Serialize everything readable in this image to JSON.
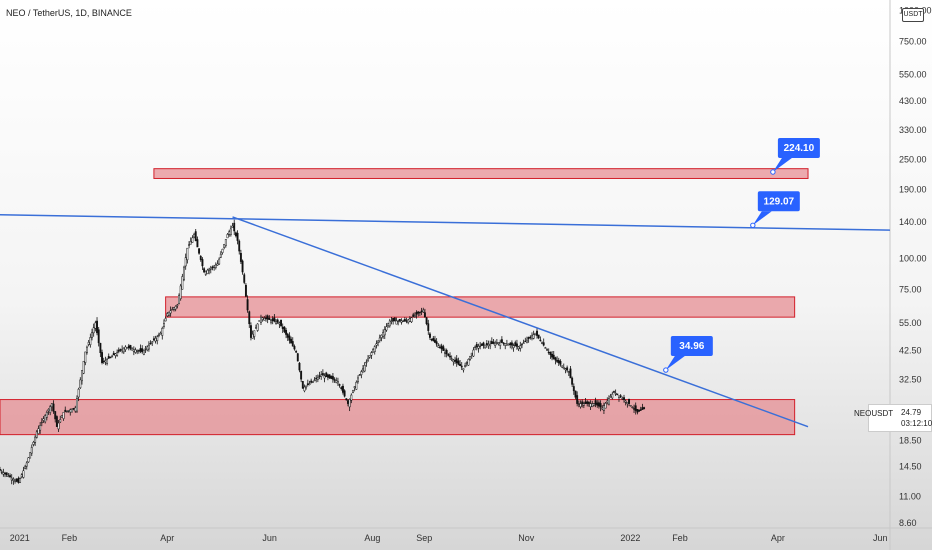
{
  "header": {
    "title": "NEO / TetherUS, 1D, BINANCE",
    "currency": "USDT"
  },
  "price_tag": {
    "symbol": "NEOUSDT",
    "last_price": "24.79",
    "countdown": "03:12:10"
  },
  "colors": {
    "trendline": "#3a6fd8",
    "zone_fill": "#e57f85",
    "zone_border": "#d21f2a",
    "callout": "#2962ff",
    "candle": "#111111"
  },
  "chart_data": {
    "type": "candlestick",
    "y_scale": "log",
    "ylim": [
      8.2,
      1100
    ],
    "x_range": [
      "2020-12-25",
      "2022-06-10"
    ],
    "x_ticks": [
      {
        "label": "2021",
        "date": "2021-01-01"
      },
      {
        "label": "Feb",
        "date": "2021-02-01"
      },
      {
        "label": "Apr",
        "date": "2021-04-01"
      },
      {
        "label": "Jun",
        "date": "2021-06-01"
      },
      {
        "label": "Aug",
        "date": "2021-08-01"
      },
      {
        "label": "Sep",
        "date": "2021-09-01"
      },
      {
        "label": "Nov",
        "date": "2021-11-01"
      },
      {
        "label": "2022",
        "date": "2022-01-01"
      },
      {
        "label": "Feb",
        "date": "2022-02-01"
      },
      {
        "label": "Apr",
        "date": "2022-04-01"
      },
      {
        "label": "Jun",
        "date": "2022-06-01"
      }
    ],
    "y_ticks": [
      "1000.00",
      "750.00",
      "550.00",
      "430.00",
      "330.00",
      "250.00",
      "190.00",
      "140.00",
      "100.00",
      "75.00",
      "55.00",
      "42.50",
      "32.50",
      "24.79",
      "18.50",
      "14.50",
      "11.00",
      "8.60"
    ],
    "price_path": [
      [
        "2020-12-25",
        14
      ],
      [
        "2021-01-05",
        12.5
      ],
      [
        "2021-01-10",
        15
      ],
      [
        "2021-01-16",
        20
      ],
      [
        "2021-01-22",
        24
      ],
      [
        "2021-01-25",
        26
      ],
      [
        "2021-01-28",
        21
      ],
      [
        "2021-02-01",
        24
      ],
      [
        "2021-02-08",
        25
      ],
      [
        "2021-02-14",
        42
      ],
      [
        "2021-02-20",
        55
      ],
      [
        "2021-02-24",
        38
      ],
      [
        "2021-03-01",
        40
      ],
      [
        "2021-03-10",
        44
      ],
      [
        "2021-03-20",
        42
      ],
      [
        "2021-03-31",
        50
      ],
      [
        "2021-04-04",
        60
      ],
      [
        "2021-04-10",
        65
      ],
      [
        "2021-04-16",
        110
      ],
      [
        "2021-04-20",
        125
      ],
      [
        "2021-04-26",
        88
      ],
      [
        "2021-05-04",
        95
      ],
      [
        "2021-05-10",
        125
      ],
      [
        "2021-05-13",
        135
      ],
      [
        "2021-05-16",
        118
      ],
      [
        "2021-05-20",
        80
      ],
      [
        "2021-05-24",
        48
      ],
      [
        "2021-05-30",
        58
      ],
      [
        "2021-06-10",
        55
      ],
      [
        "2021-06-20",
        42
      ],
      [
        "2021-06-24",
        30
      ],
      [
        "2021-06-30",
        32
      ],
      [
        "2021-07-05",
        34
      ],
      [
        "2021-07-15",
        32
      ],
      [
        "2021-07-21",
        26
      ],
      [
        "2021-07-27",
        33
      ],
      [
        "2021-08-05",
        43
      ],
      [
        "2021-08-15",
        56
      ],
      [
        "2021-08-25",
        56
      ],
      [
        "2021-09-04",
        62
      ],
      [
        "2021-09-08",
        48
      ],
      [
        "2021-09-20",
        40
      ],
      [
        "2021-09-28",
        36
      ],
      [
        "2021-10-05",
        44
      ],
      [
        "2021-10-20",
        46
      ],
      [
        "2021-10-31",
        44
      ],
      [
        "2021-11-10",
        50
      ],
      [
        "2021-11-20",
        40
      ],
      [
        "2021-11-30",
        35
      ],
      [
        "2021-12-05",
        26
      ],
      [
        "2021-12-15",
        26
      ],
      [
        "2021-12-20",
        25
      ],
      [
        "2021-12-27",
        29
      ],
      [
        "2022-01-05",
        26
      ],
      [
        "2022-01-10",
        24
      ],
      [
        "2022-01-14",
        24.79
      ]
    ],
    "zones": [
      {
        "from": "2021-03-27",
        "to": "2022-04-22",
        "low": 210,
        "high": 230
      },
      {
        "from": "2021-04-03",
        "to": "2022-04-14",
        "low": 58,
        "high": 70
      },
      {
        "from": "2020-12-25",
        "to": "2022-04-14",
        "low": 19.5,
        "high": 27
      }
    ],
    "trendlines": [
      {
        "from": [
          "2020-12-25",
          150
        ],
        "to": [
          "2022-06-10",
          130
        ],
        "label": "129.07",
        "anchor": [
          "2022-03-20",
          136
        ]
      },
      {
        "from": [
          "2021-05-13",
          147
        ],
        "to": [
          "2022-04-22",
          21
        ],
        "label": "34.96",
        "anchor": [
          "2022-01-27",
          35.5
        ]
      },
      {
        "label": "224.10",
        "anchor": [
          "2022-04-01",
          223
        ]
      }
    ]
  }
}
